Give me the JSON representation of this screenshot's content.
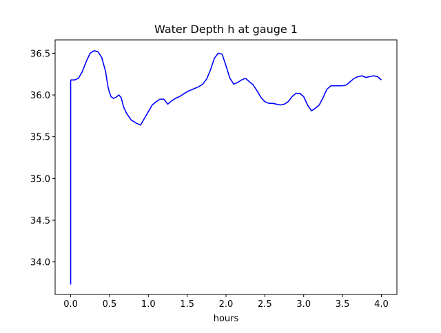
{
  "chart_data": {
    "type": "line",
    "title": "Water Depth h at gauge 1",
    "xlabel": "hours",
    "ylabel": "",
    "xlim": [
      -0.2,
      4.2
    ],
    "ylim": [
      33.61,
      36.66
    ],
    "xticks": [
      0.0,
      0.5,
      1.0,
      1.5,
      2.0,
      2.5,
      3.0,
      3.5,
      4.0
    ],
    "xtick_labels": [
      "0.0",
      "0.5",
      "1.0",
      "1.5",
      "2.0",
      "2.5",
      "3.0",
      "3.5",
      "4.0"
    ],
    "yticks": [
      34.0,
      34.5,
      35.0,
      35.5,
      36.0,
      36.5
    ],
    "ytick_labels": [
      "34.0",
      "34.5",
      "35.0",
      "35.5",
      "36.0",
      "36.5"
    ],
    "grid": false,
    "line_color": "#0000ff",
    "series": [
      {
        "x": [
          0.0,
          0.0,
          0.005,
          0.05,
          0.1,
          0.15,
          0.2,
          0.25,
          0.3,
          0.35,
          0.4,
          0.45,
          0.48,
          0.5,
          0.52,
          0.55,
          0.58,
          0.62,
          0.65,
          0.68,
          0.72,
          0.78,
          0.85,
          0.9,
          0.95,
          1.0,
          1.05,
          1.1,
          1.15,
          1.2,
          1.25,
          1.3,
          1.35,
          1.4,
          1.45,
          1.5,
          1.55,
          1.6,
          1.65,
          1.7,
          1.75,
          1.8,
          1.85,
          1.9,
          1.95,
          2.0,
          2.05,
          2.1,
          2.15,
          2.2,
          2.25,
          2.3,
          2.35,
          2.4,
          2.45,
          2.5,
          2.55,
          2.6,
          2.65,
          2.7,
          2.75,
          2.8,
          2.85,
          2.9,
          2.95,
          3.0,
          3.05,
          3.1,
          3.15,
          3.2,
          3.25,
          3.3,
          3.35,
          3.4,
          3.45,
          3.5,
          3.55,
          3.6,
          3.65,
          3.7,
          3.75,
          3.8,
          3.85,
          3.9,
          3.95,
          4.0
        ],
        "y": [
          33.73,
          36.17,
          36.18,
          36.18,
          36.2,
          36.28,
          36.4,
          36.5,
          36.53,
          36.52,
          36.45,
          36.28,
          36.1,
          36.03,
          35.98,
          35.96,
          35.97,
          36.0,
          35.97,
          35.86,
          35.78,
          35.7,
          35.66,
          35.64,
          35.72,
          35.8,
          35.88,
          35.92,
          35.95,
          35.95,
          35.89,
          35.93,
          35.96,
          35.98,
          36.01,
          36.04,
          36.06,
          36.08,
          36.1,
          36.13,
          36.19,
          36.3,
          36.44,
          36.5,
          36.49,
          36.35,
          36.2,
          36.13,
          36.15,
          36.18,
          36.2,
          36.16,
          36.12,
          36.05,
          35.97,
          35.92,
          35.9,
          35.9,
          35.89,
          35.88,
          35.89,
          35.92,
          35.98,
          36.02,
          36.02,
          35.98,
          35.88,
          35.81,
          35.84,
          35.88,
          35.97,
          36.07,
          36.11,
          36.11,
          36.11,
          36.11,
          36.12,
          36.16,
          36.2,
          36.22,
          36.23,
          36.21,
          36.22,
          36.23,
          36.22,
          36.18
        ]
      }
    ]
  }
}
